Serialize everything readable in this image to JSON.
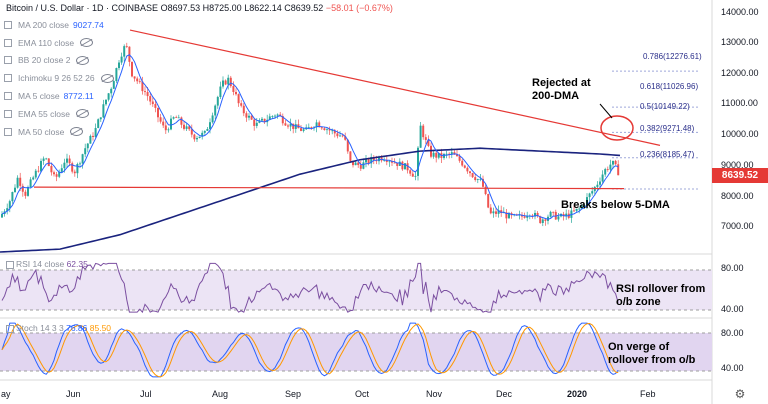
{
  "header": {
    "symbol": "Bitcoin / U.S. Dollar · 1D · COINBASE",
    "open": "O8697.53",
    "high": "H8725.00",
    "low": "L8622.14",
    "close": "C8639.52",
    "change": "−58.01 (−0.67%)"
  },
  "legend": [
    {
      "name": "MA 200 close",
      "value": "9027.74",
      "hidden": false
    },
    {
      "name": "EMA 110 close",
      "value": "",
      "hidden": true
    },
    {
      "name": "BB 20 close 2",
      "value": "",
      "hidden": true
    },
    {
      "name": "Ichimoku 9 26 52 26",
      "value": "",
      "hidden": true
    },
    {
      "name": "MA 5 close",
      "value": "8772.11",
      "hidden": false
    },
    {
      "name": "EMA 55 close",
      "value": "",
      "hidden": true
    },
    {
      "name": "MA 50 close",
      "value": "",
      "hidden": true
    }
  ],
  "annotations": {
    "rejected": "Rejected at 200-DMA",
    "breaks": "Breaks below 5-DMA",
    "rsi": "RSI rollover from o/b zone",
    "stoch": "On verge of rollover from o/b"
  },
  "fib_levels": [
    {
      "label": "0.786(12276.61)",
      "value": 12276.61
    },
    {
      "label": "0.618(11026.96)",
      "value": 11026.96
    },
    {
      "label": "0.5(10149.22)",
      "value": 10149.22
    },
    {
      "label": "0.382(9271.48)",
      "value": 9271.48
    },
    {
      "label": "0.236(8185.47)",
      "value": 8185.47
    }
  ],
  "last_price": "8639.52",
  "rsi": {
    "label": "RSI 14 close",
    "value": "62.35",
    "ticks": [
      "80.00",
      "40.00"
    ]
  },
  "stoch": {
    "label": "Stoch 14 3 3",
    "k": "76.86",
    "d": "85.50",
    "ticks": [
      "80.00",
      "40.00"
    ]
  },
  "colors": {
    "up": "#26a69a",
    "down": "#ef5350",
    "ma200": "#1a237e",
    "ma5": "#2962ff",
    "trend": "#e53935",
    "rsi": "#7b4fa0",
    "band": "#e1d5f0"
  },
  "chart_data": {
    "type": "candlestick",
    "ylim": [
      6000,
      14500
    ],
    "y_ticks": [
      "14000.00",
      "13000.00",
      "12000.00",
      "11000.00",
      "10000.00",
      "9000.00",
      "8000.00",
      "7000.00"
    ],
    "x_ticks": [
      "ay",
      "Jun",
      "Jul",
      "Aug",
      "Sep",
      "Oct",
      "Nov",
      "Dec",
      "2020",
      "Feb"
    ],
    "price_path": [
      [
        0,
        7200
      ],
      [
        10,
        7800
      ],
      [
        18,
        8600
      ],
      [
        25,
        8000
      ],
      [
        35,
        8700
      ],
      [
        45,
        9300
      ],
      [
        55,
        8500
      ],
      [
        65,
        9200
      ],
      [
        75,
        8800
      ],
      [
        85,
        9600
      ],
      [
        95,
        10200
      ],
      [
        105,
        11200
      ],
      [
        112,
        11800
      ],
      [
        120,
        12800
      ],
      [
        126,
        13200
      ],
      [
        132,
        12200
      ],
      [
        140,
        11800
      ],
      [
        148,
        11400
      ],
      [
        155,
        10900
      ],
      [
        165,
        10200
      ],
      [
        175,
        10700
      ],
      [
        185,
        10300
      ],
      [
        195,
        10000
      ],
      [
        205,
        10100
      ],
      [
        215,
        11100
      ],
      [
        222,
        11800
      ],
      [
        228,
        12000
      ],
      [
        234,
        11600
      ],
      [
        240,
        11000
      ],
      [
        248,
        10700
      ],
      [
        256,
        10400
      ],
      [
        266,
        10600
      ],
      [
        276,
        10800
      ],
      [
        286,
        10500
      ],
      [
        296,
        10300
      ],
      [
        306,
        10200
      ],
      [
        316,
        10500
      ],
      [
        326,
        10300
      ],
      [
        336,
        10100
      ],
      [
        344,
        10000
      ],
      [
        350,
        9100
      ],
      [
        360,
        9000
      ],
      [
        372,
        9200
      ],
      [
        384,
        9300
      ],
      [
        396,
        9100
      ],
      [
        408,
        8900
      ],
      [
        416,
        8600
      ],
      [
        420,
        10400
      ],
      [
        430,
        9400
      ],
      [
        440,
        9300
      ],
      [
        452,
        9400
      ],
      [
        462,
        9100
      ],
      [
        472,
        8700
      ],
      [
        482,
        8400
      ],
      [
        490,
        7300
      ],
      [
        500,
        7400
      ],
      [
        510,
        7200
      ],
      [
        520,
        7200
      ],
      [
        530,
        7400
      ],
      [
        540,
        7100
      ],
      [
        550,
        7300
      ],
      [
        560,
        7200
      ],
      [
        570,
        7300
      ],
      [
        580,
        7500
      ],
      [
        588,
        7900
      ],
      [
        596,
        8300
      ],
      [
        604,
        8800
      ],
      [
        612,
        9100
      ],
      [
        620,
        8700
      ]
    ],
    "ma200_path": [
      [
        0,
        6000
      ],
      [
        60,
        6100
      ],
      [
        120,
        6600
      ],
      [
        180,
        7300
      ],
      [
        240,
        8000
      ],
      [
        300,
        8700
      ],
      [
        360,
        9200
      ],
      [
        420,
        9500
      ],
      [
        480,
        9600
      ],
      [
        540,
        9500
      ],
      [
        600,
        9400
      ],
      [
        620,
        9350
      ]
    ],
    "trendline_upper": [
      [
        130,
        13700
      ],
      [
        660,
        9700
      ]
    ],
    "trendline_lower": [
      [
        34,
        8250
      ],
      [
        624,
        8200
      ]
    ]
  }
}
